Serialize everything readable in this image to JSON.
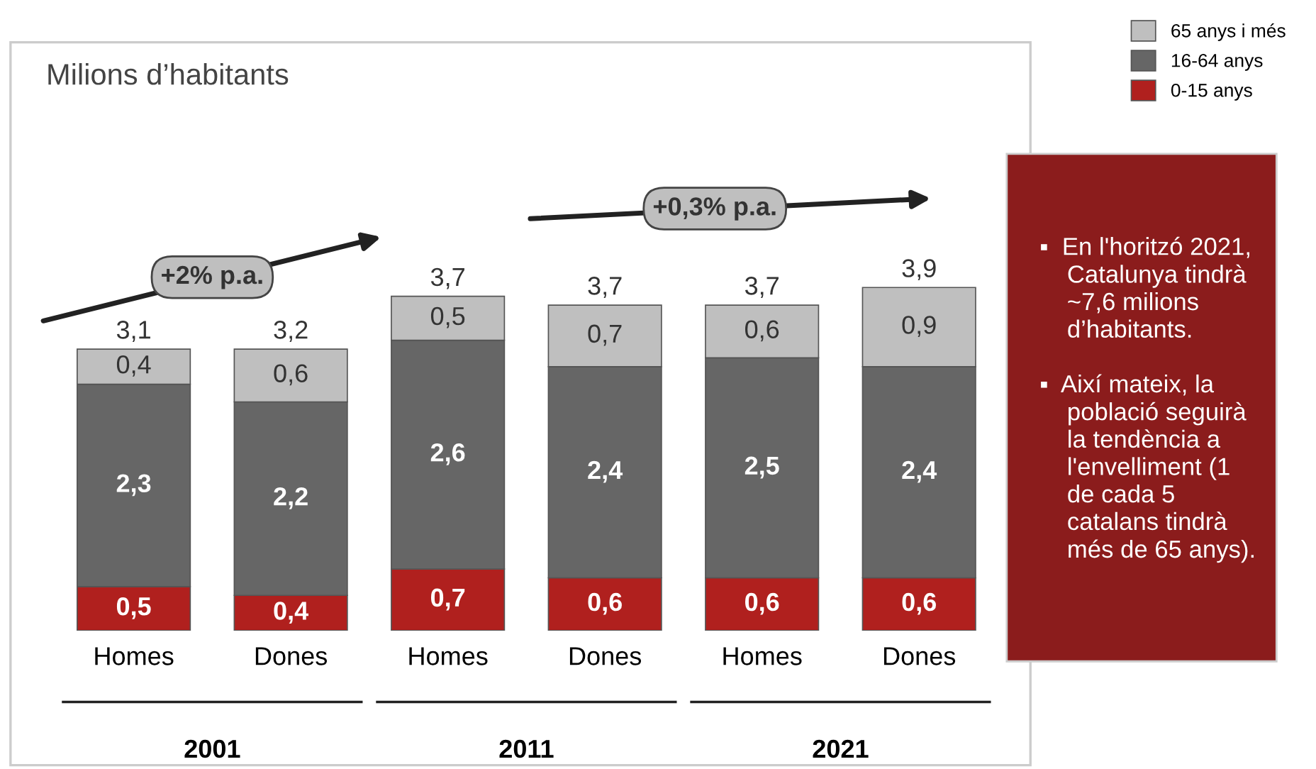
{
  "chart_data": {
    "type": "bar",
    "stacked": true,
    "title": "Milions d’habitants",
    "categories": [
      "Homes",
      "Dones",
      "Homes",
      "Dones",
      "Homes",
      "Dones"
    ],
    "series": [
      {
        "name": "0-15 anys",
        "color": "#b0201e",
        "values": [
          0.5,
          0.4,
          0.7,
          0.6,
          0.6,
          0.6
        ],
        "value_labels": [
          "0,5",
          "0,4",
          "0,7",
          "0,6",
          "0,6",
          "0,6"
        ]
      },
      {
        "name": "16-64 anys",
        "color": "#666666",
        "values": [
          2.3,
          2.2,
          2.6,
          2.4,
          2.5,
          2.4
        ],
        "value_labels": [
          "2,3",
          "2,2",
          "2,6",
          "2,4",
          "2,5",
          "2,4"
        ]
      },
      {
        "name": "65 anys i més",
        "color": "#bfbfbf",
        "values": [
          0.4,
          0.6,
          0.5,
          0.7,
          0.6,
          0.9
        ],
        "value_labels": [
          "0,4",
          "0,6",
          "0,5",
          "0,7",
          "0,6",
          "0,9"
        ]
      }
    ],
    "totals": [
      "3,1",
      "3,2",
      "3,7",
      "3,7",
      "3,7",
      "3,9"
    ],
    "legend": "top right",
    "annotations": [
      "+2% p.a.",
      "+0,3% p.a.",
      "2001",
      "2011",
      "2021",
      "▪  En l'horitzó 2021,\n    Catalunya tindrà\n    ~7,6 milions\n    d’habitants.\n\n▪  Així mateix, la\n    població seguirà\n    la tendència a\n    l'envelliment (1\n    de cada 5\n    catalans tindrà\n    més de 65 anys)."
    ]
  }
}
